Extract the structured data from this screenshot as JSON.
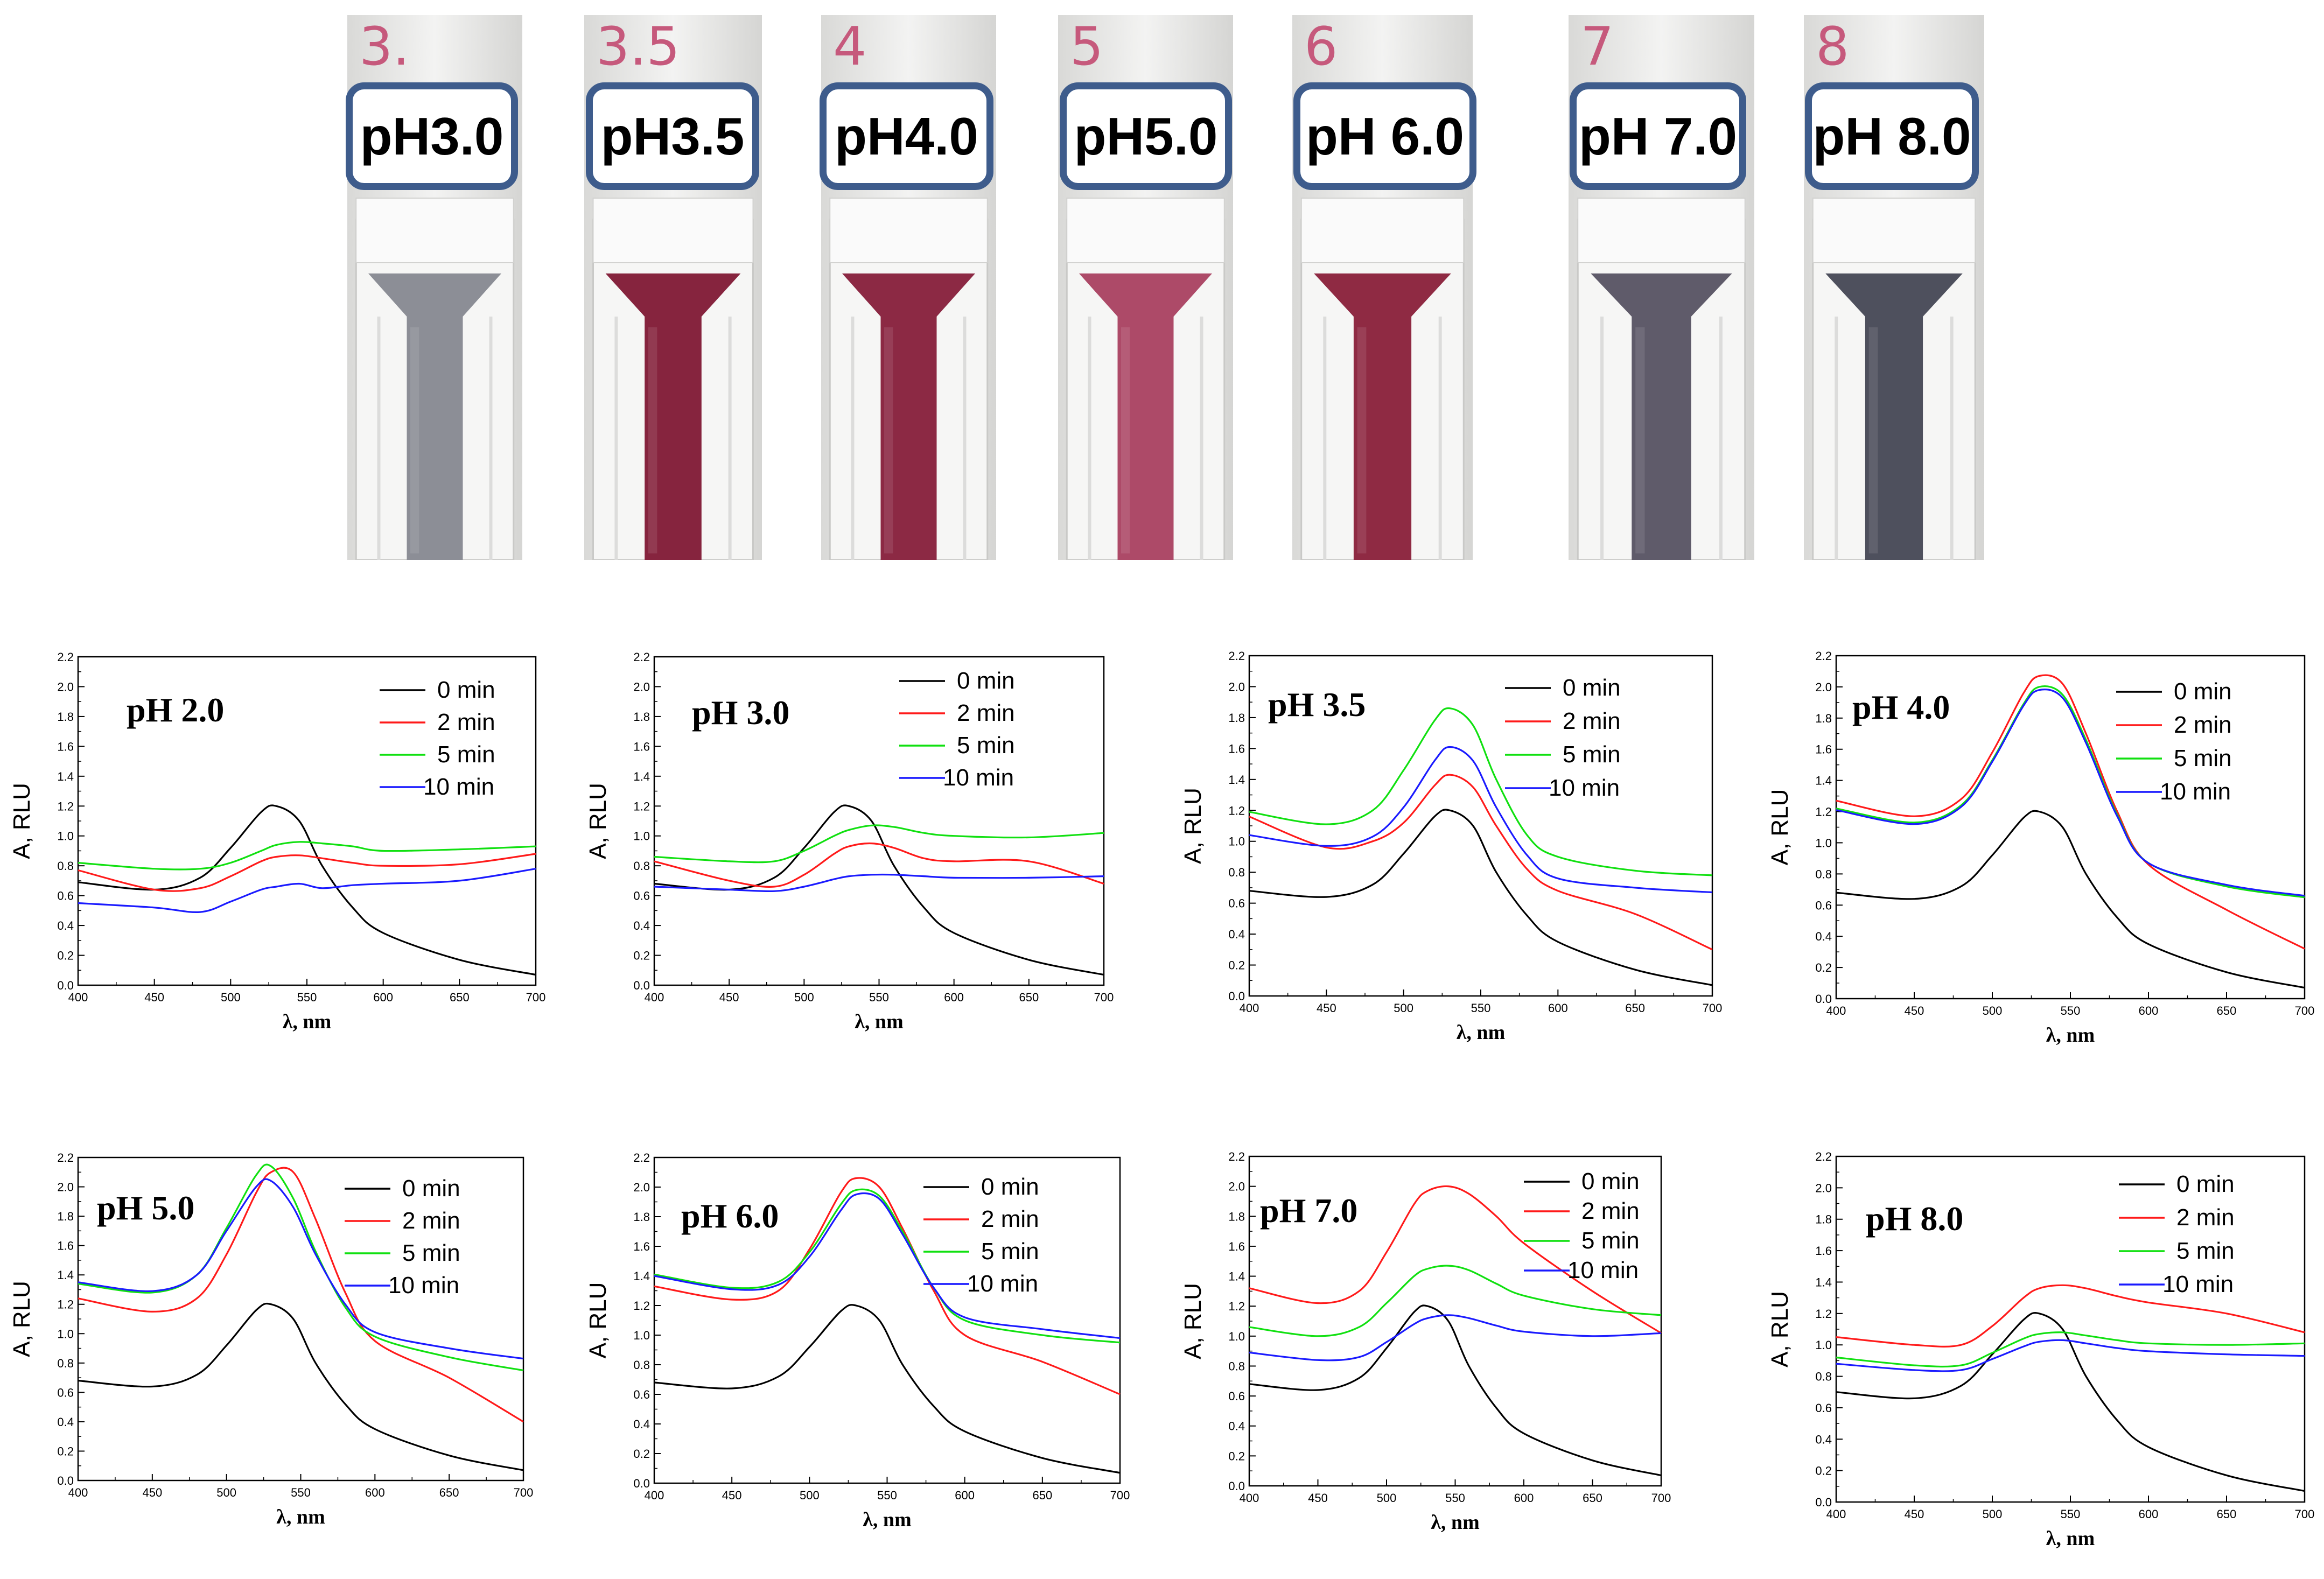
{
  "cuvettes": [
    {
      "handmark": "3.",
      "label": "pH3.0",
      "liquid_color": "#8c8e96"
    },
    {
      "handmark": "3.5",
      "label": "pH3.5",
      "liquid_color": "#86243e"
    },
    {
      "handmark": "4",
      "label": "pH4.0",
      "liquid_color": "#8c2944"
    },
    {
      "handmark": "5",
      "label": "pH5.0",
      "liquid_color": "#ad4a68"
    },
    {
      "handmark": "6",
      "label": "pH 6.0",
      "liquid_color": "#8f2a43"
    },
    {
      "handmark": "7",
      "label": "pH 7.0",
      "liquid_color": "#5f5b6a"
    },
    {
      "handmark": "8",
      "label": "pH 8.0",
      "liquid_color": "#4e505d"
    }
  ],
  "legend_labels": [
    "0 min",
    "2 min",
    "5 min",
    "10 min"
  ],
  "series_colors": [
    "#000000",
    "#ff1a1a",
    "#10e010",
    "#1a1aff"
  ],
  "chart_data": [
    {
      "type": "line",
      "title": "pH 2.0",
      "xlabel": "λ, nm",
      "ylabel": "A, RLU",
      "xlim": [
        400,
        700
      ],
      "ylim": [
        0,
        2.2
      ],
      "xticks": [
        "400",
        "450",
        "500",
        "550",
        "600",
        "650",
        "700"
      ],
      "yticks": [
        "0.0",
        "0.2",
        "0.4",
        "0.6",
        "0.8",
        "1.0",
        "1.2",
        "1.4",
        "1.6",
        "1.8",
        "2.0",
        "2.2"
      ],
      "x": [
        400,
        450,
        480,
        500,
        520,
        530,
        545,
        560,
        580,
        600,
        650,
        700
      ],
      "series": [
        {
          "name": "0 min",
          "values": [
            0.69,
            0.64,
            0.72,
            0.92,
            1.16,
            1.2,
            1.1,
            0.8,
            0.52,
            0.35,
            0.17,
            0.07
          ]
        },
        {
          "name": "2 min",
          "values": [
            0.77,
            0.64,
            0.65,
            0.73,
            0.83,
            0.86,
            0.87,
            0.85,
            0.82,
            0.8,
            0.81,
            0.88
          ]
        },
        {
          "name": "5 min",
          "values": [
            0.82,
            0.78,
            0.78,
            0.82,
            0.9,
            0.94,
            0.96,
            0.95,
            0.93,
            0.9,
            0.91,
            0.93
          ]
        },
        {
          "name": "10 min",
          "values": [
            0.55,
            0.52,
            0.49,
            0.56,
            0.64,
            0.66,
            0.68,
            0.65,
            0.67,
            0.68,
            0.7,
            0.78
          ]
        }
      ]
    },
    {
      "type": "line",
      "title": "pH 3.0",
      "xlabel": "λ, nm",
      "ylabel": "A, RLU",
      "xlim": [
        400,
        700
      ],
      "ylim": [
        0,
        2.2
      ],
      "xticks": [
        "400",
        "450",
        "500",
        "550",
        "600",
        "650",
        "700"
      ],
      "yticks": [
        "0.0",
        "0.2",
        "0.4",
        "0.6",
        "0.8",
        "1.0",
        "1.2",
        "1.4",
        "1.6",
        "1.8",
        "2.0",
        "2.2"
      ],
      "x": [
        400,
        450,
        480,
        500,
        520,
        530,
        545,
        560,
        580,
        600,
        650,
        700
      ],
      "series": [
        {
          "name": "0 min",
          "values": [
            0.68,
            0.64,
            0.72,
            0.92,
            1.16,
            1.2,
            1.1,
            0.8,
            0.52,
            0.35,
            0.17,
            0.07
          ]
        },
        {
          "name": "2 min",
          "values": [
            0.83,
            0.7,
            0.66,
            0.74,
            0.88,
            0.93,
            0.95,
            0.92,
            0.85,
            0.83,
            0.83,
            0.68
          ]
        },
        {
          "name": "5 min",
          "values": [
            0.86,
            0.83,
            0.83,
            0.9,
            1.0,
            1.04,
            1.07,
            1.06,
            1.02,
            1.0,
            0.99,
            1.02
          ]
        },
        {
          "name": "10 min",
          "values": [
            0.66,
            0.64,
            0.63,
            0.66,
            0.71,
            0.73,
            0.74,
            0.74,
            0.73,
            0.72,
            0.72,
            0.73
          ]
        }
      ]
    },
    {
      "type": "line",
      "title": "pH 3.5",
      "xlabel": "λ, nm",
      "ylabel": "A, RLU",
      "xlim": [
        400,
        700
      ],
      "ylim": [
        0,
        2.2
      ],
      "xticks": [
        "400",
        "450",
        "500",
        "550",
        "600",
        "650",
        "700"
      ],
      "yticks": [
        "0.0",
        "0.2",
        "0.4",
        "0.6",
        "0.8",
        "1.0",
        "1.2",
        "1.4",
        "1.6",
        "1.8",
        "2.0",
        "2.2"
      ],
      "x": [
        400,
        450,
        480,
        500,
        520,
        530,
        545,
        560,
        580,
        600,
        650,
        700
      ],
      "series": [
        {
          "name": "0 min",
          "values": [
            0.68,
            0.64,
            0.72,
            0.92,
            1.16,
            1.2,
            1.1,
            0.8,
            0.52,
            0.35,
            0.17,
            0.07
          ]
        },
        {
          "name": "2 min",
          "values": [
            1.16,
            0.96,
            1.0,
            1.12,
            1.36,
            1.43,
            1.35,
            1.1,
            0.82,
            0.68,
            0.53,
            0.3
          ]
        },
        {
          "name": "5 min",
          "values": [
            1.19,
            1.11,
            1.2,
            1.46,
            1.78,
            1.86,
            1.75,
            1.4,
            1.04,
            0.9,
            0.81,
            0.78
          ]
        },
        {
          "name": "10 min",
          "values": [
            1.04,
            0.97,
            1.03,
            1.22,
            1.52,
            1.61,
            1.52,
            1.22,
            0.91,
            0.76,
            0.7,
            0.67
          ]
        }
      ]
    },
    {
      "type": "line",
      "title": "pH 4.0",
      "xlabel": "λ, nm",
      "ylabel": "A, RLU",
      "xlim": [
        400,
        700
      ],
      "ylim": [
        0,
        2.2
      ],
      "xticks": [
        "400",
        "450",
        "500",
        "550",
        "600",
        "650",
        "700"
      ],
      "yticks": [
        "0.0",
        "0.2",
        "0.4",
        "0.6",
        "0.8",
        "1.0",
        "1.2",
        "1.4",
        "1.6",
        "1.8",
        "2.0",
        "2.2"
      ],
      "x": [
        400,
        450,
        480,
        500,
        520,
        530,
        545,
        560,
        580,
        600,
        650,
        700
      ],
      "series": [
        {
          "name": "0 min",
          "values": [
            0.68,
            0.64,
            0.72,
            0.92,
            1.16,
            1.2,
            1.1,
            0.8,
            0.52,
            0.35,
            0.17,
            0.07
          ]
        },
        {
          "name": "2 min",
          "values": [
            1.27,
            1.17,
            1.28,
            1.58,
            1.96,
            2.07,
            2.02,
            1.7,
            1.2,
            0.86,
            0.57,
            0.32
          ]
        },
        {
          "name": "5 min",
          "values": [
            1.22,
            1.13,
            1.24,
            1.53,
            1.89,
            2.0,
            1.95,
            1.66,
            1.18,
            0.87,
            0.72,
            0.65
          ]
        },
        {
          "name": "10 min",
          "values": [
            1.21,
            1.12,
            1.23,
            1.52,
            1.88,
            1.98,
            1.93,
            1.64,
            1.17,
            0.87,
            0.73,
            0.66
          ]
        }
      ]
    },
    {
      "type": "line",
      "title": "pH 5.0",
      "xlabel": "λ, nm",
      "ylabel": "A, RLU",
      "xlim": [
        400,
        700
      ],
      "ylim": [
        0,
        2.2
      ],
      "xticks": [
        "400",
        "450",
        "500",
        "550",
        "600",
        "650",
        "700"
      ],
      "yticks": [
        "0.0",
        "0.2",
        "0.4",
        "0.6",
        "0.8",
        "1.0",
        "1.2",
        "1.4",
        "1.6",
        "1.8",
        "2.0",
        "2.2"
      ],
      "x": [
        400,
        450,
        480,
        500,
        520,
        530,
        545,
        560,
        580,
        600,
        650,
        700
      ],
      "series": [
        {
          "name": "0 min",
          "values": [
            0.68,
            0.64,
            0.72,
            0.92,
            1.16,
            1.2,
            1.1,
            0.8,
            0.52,
            0.35,
            0.17,
            0.07
          ]
        },
        {
          "name": "2 min",
          "values": [
            1.24,
            1.15,
            1.24,
            1.54,
            1.96,
            2.1,
            2.1,
            1.78,
            1.28,
            0.95,
            0.7,
            0.4
          ]
        },
        {
          "name": "5 min",
          "values": [
            1.34,
            1.28,
            1.4,
            1.72,
            2.08,
            2.14,
            1.92,
            1.56,
            1.18,
            0.98,
            0.84,
            0.75
          ]
        },
        {
          "name": "10 min",
          "values": [
            1.35,
            1.29,
            1.4,
            1.7,
            2.0,
            2.04,
            1.86,
            1.54,
            1.2,
            1.01,
            0.9,
            0.83
          ]
        }
      ]
    },
    {
      "type": "line",
      "title": "pH 6.0",
      "xlabel": "λ, nm",
      "ylabel": "A, RLU",
      "xlim": [
        400,
        700
      ],
      "ylim": [
        0,
        2.2
      ],
      "xticks": [
        "400",
        "450",
        "500",
        "550",
        "600",
        "650",
        "700"
      ],
      "yticks": [
        "0.0",
        "0.2",
        "0.4",
        "0.6",
        "0.8",
        "1.0",
        "1.2",
        "1.4",
        "1.6",
        "1.8",
        "2.0",
        "2.2"
      ],
      "x": [
        400,
        450,
        480,
        500,
        520,
        530,
        545,
        560,
        580,
        600,
        650,
        700
      ],
      "series": [
        {
          "name": "0 min",
          "values": [
            0.68,
            0.64,
            0.72,
            0.92,
            1.16,
            1.2,
            1.1,
            0.8,
            0.52,
            0.35,
            0.17,
            0.07
          ]
        },
        {
          "name": "2 min",
          "values": [
            1.33,
            1.24,
            1.3,
            1.58,
            1.96,
            2.06,
            2.0,
            1.72,
            1.3,
            1.0,
            0.82,
            0.6
          ]
        },
        {
          "name": "5 min",
          "values": [
            1.41,
            1.32,
            1.36,
            1.56,
            1.88,
            1.98,
            1.94,
            1.7,
            1.32,
            1.1,
            1.0,
            0.95
          ]
        },
        {
          "name": "10 min",
          "values": [
            1.4,
            1.31,
            1.34,
            1.53,
            1.84,
            1.95,
            1.92,
            1.68,
            1.32,
            1.12,
            1.04,
            0.98
          ]
        }
      ]
    },
    {
      "type": "line",
      "title": "pH 7.0",
      "xlabel": "λ, nm",
      "ylabel": "A, RLU",
      "xlim": [
        400,
        700
      ],
      "ylim": [
        0,
        2.2
      ],
      "xticks": [
        "400",
        "450",
        "500",
        "550",
        "600",
        "650",
        "700"
      ],
      "yticks": [
        "0.0",
        "0.2",
        "0.4",
        "0.6",
        "0.8",
        "1.0",
        "1.2",
        "1.4",
        "1.6",
        "1.8",
        "2.0",
        "2.2"
      ],
      "x": [
        400,
        450,
        480,
        500,
        520,
        530,
        545,
        560,
        580,
        600,
        650,
        700
      ],
      "series": [
        {
          "name": "0 min",
          "values": [
            0.68,
            0.64,
            0.72,
            0.92,
            1.16,
            1.2,
            1.1,
            0.8,
            0.52,
            0.35,
            0.17,
            0.07
          ]
        },
        {
          "name": "2 min",
          "values": [
            1.32,
            1.22,
            1.3,
            1.56,
            1.88,
            1.97,
            2.0,
            1.95,
            1.8,
            1.62,
            1.3,
            1.02
          ]
        },
        {
          "name": "5 min",
          "values": [
            1.06,
            1.0,
            1.06,
            1.22,
            1.4,
            1.45,
            1.47,
            1.44,
            1.35,
            1.27,
            1.18,
            1.14
          ]
        },
        {
          "name": "10 min",
          "values": [
            0.89,
            0.84,
            0.86,
            0.96,
            1.08,
            1.12,
            1.14,
            1.12,
            1.07,
            1.03,
            1.0,
            1.02
          ]
        }
      ]
    },
    {
      "type": "line",
      "title": "pH 8.0",
      "xlabel": "λ, nm",
      "ylabel": "A, RLU",
      "xlim": [
        400,
        700
      ],
      "ylim": [
        0,
        2.2
      ],
      "xticks": [
        "400",
        "450",
        "500",
        "550",
        "600",
        "650",
        "700"
      ],
      "yticks": [
        "0.0",
        "0.2",
        "0.4",
        "0.6",
        "0.8",
        "1.0",
        "1.2",
        "1.4",
        "1.6",
        "1.8",
        "2.0",
        "2.2"
      ],
      "x": [
        400,
        450,
        480,
        500,
        520,
        530,
        545,
        560,
        580,
        600,
        650,
        700
      ],
      "series": [
        {
          "name": "0 min",
          "values": [
            0.7,
            0.66,
            0.74,
            0.94,
            1.16,
            1.2,
            1.1,
            0.8,
            0.52,
            0.35,
            0.17,
            0.07
          ]
        },
        {
          "name": "2 min",
          "values": [
            1.05,
            1.0,
            1.0,
            1.12,
            1.3,
            1.36,
            1.38,
            1.36,
            1.31,
            1.27,
            1.2,
            1.08
          ]
        },
        {
          "name": "5 min",
          "values": [
            0.92,
            0.87,
            0.87,
            0.95,
            1.04,
            1.07,
            1.08,
            1.06,
            1.03,
            1.01,
            1.0,
            1.01
          ]
        },
        {
          "name": "10 min",
          "values": [
            0.88,
            0.84,
            0.84,
            0.91,
            0.99,
            1.02,
            1.03,
            1.01,
            0.98,
            0.96,
            0.94,
            0.93
          ]
        }
      ]
    }
  ]
}
